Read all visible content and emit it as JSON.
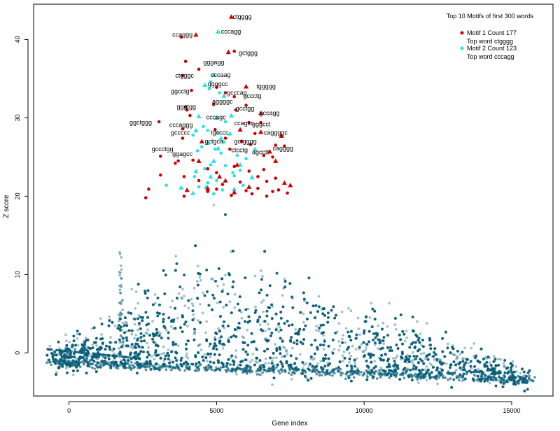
{
  "chart_data": {
    "type": "scatter",
    "xlabel": "Gene index",
    "ylabel": "Z score",
    "xlim": [
      -1200,
      16400
    ],
    "ylim": [
      -5.5,
      44.5
    ],
    "xticks": [
      0,
      5000,
      10000,
      15000
    ],
    "yticks": [
      0,
      10,
      20,
      30,
      40
    ],
    "grid": false,
    "colors": {
      "background_points": "#0a5f7a",
      "motif1": "#d10000",
      "motif2": "#22e6e6",
      "axis": "#000000"
    },
    "legend": {
      "position": "top-right",
      "title": "Top 10 Motifs of first 300 words",
      "entries": [
        {
          "series": "motif1",
          "line1": "Motif  1 Count 177",
          "line2": "Top word  ctgggg"
        },
        {
          "series": "motif2",
          "line1": "Motif  2 Count 123",
          "line2": "Top word  cccagg"
        }
      ]
    },
    "motif1_triangles": [
      [
        5500,
        42.9
      ],
      [
        4300,
        40.6
      ],
      [
        5400,
        38.4
      ],
      [
        6000,
        34.0
      ],
      [
        6500,
        30.6
      ],
      [
        6500,
        28.2
      ],
      [
        5800,
        28.5
      ],
      [
        4500,
        27.0
      ],
      [
        7200,
        27.7
      ],
      [
        7000,
        24.5
      ],
      [
        6800,
        25.7
      ],
      [
        5700,
        24.0
      ],
      [
        5300,
        22.0
      ],
      [
        5100,
        22.5
      ],
      [
        7300,
        21.7
      ],
      [
        7500,
        21.4
      ],
      [
        4000,
        20.8
      ],
      [
        4700,
        21.0
      ],
      [
        5600,
        20.5
      ],
      [
        6100,
        21.2
      ],
      [
        4400,
        24.5
      ]
    ],
    "motif2_triangles": [
      [
        5050,
        41.0
      ],
      [
        4900,
        35.5
      ],
      [
        4600,
        34.2
      ],
      [
        5250,
        32.8
      ],
      [
        5000,
        30.0
      ],
      [
        5500,
        30.3
      ],
      [
        4400,
        30.2
      ],
      [
        4300,
        28.4
      ],
      [
        5450,
        28.0
      ],
      [
        5150,
        27.4
      ],
      [
        4700,
        26.8
      ],
      [
        4900,
        24.5
      ],
      [
        4800,
        22.5
      ],
      [
        4200,
        20.4
      ],
      [
        5600,
        20.9
      ],
      [
        5050,
        26.1
      ],
      [
        4650,
        21.2
      ],
      [
        3800,
        21.1
      ],
      [
        5800,
        24.0
      ],
      [
        6300,
        26.0
      ],
      [
        4300,
        23.2
      ],
      [
        6200,
        22.4
      ]
    ],
    "motif1_dots": [
      [
        5600,
        38.5
      ],
      [
        3800,
        40.3
      ],
      [
        3950,
        37.2
      ],
      [
        3850,
        35.4
      ],
      [
        4150,
        33.5
      ],
      [
        4400,
        36.2
      ],
      [
        5000,
        33.9
      ],
      [
        5600,
        32.7
      ],
      [
        5300,
        33.2
      ],
      [
        3950,
        31.4
      ],
      [
        4000,
        31.0
      ],
      [
        4900,
        31.7
      ],
      [
        5650,
        31.0
      ],
      [
        6000,
        31.6
      ],
      [
        3050,
        29.5
      ],
      [
        4100,
        30.3
      ],
      [
        6100,
        29.4
      ],
      [
        3850,
        28.6
      ],
      [
        6500,
        29.4
      ],
      [
        3850,
        27.4
      ],
      [
        4950,
        28.5
      ],
      [
        6300,
        28.0
      ],
      [
        5300,
        27.4
      ],
      [
        5850,
        27.0
      ],
      [
        6150,
        26.6
      ],
      [
        7000,
        26.5
      ],
      [
        7300,
        26.4
      ],
      [
        5450,
        26.0
      ],
      [
        6600,
        25.2
      ],
      [
        6900,
        25.0
      ],
      [
        3100,
        25.1
      ],
      [
        3600,
        24.2
      ],
      [
        4200,
        24.6
      ],
      [
        4700,
        23.5
      ],
      [
        5000,
        23.0
      ],
      [
        5600,
        23.8
      ],
      [
        6100,
        23.2
      ],
      [
        6400,
        22.5
      ],
      [
        3700,
        24.5
      ],
      [
        3100,
        22.7
      ],
      [
        3900,
        22.5
      ],
      [
        4400,
        22.0
      ],
      [
        5200,
        21.5
      ],
      [
        5800,
        21.8
      ],
      [
        6700,
        21.9
      ],
      [
        2700,
        20.9
      ],
      [
        2600,
        19.8
      ],
      [
        4700,
        20.6
      ],
      [
        5000,
        20.9
      ],
      [
        6200,
        20.3
      ],
      [
        6900,
        20.6
      ],
      [
        7100,
        20.8
      ],
      [
        7400,
        20.4
      ],
      [
        3900,
        20.0
      ],
      [
        5500,
        20.1
      ],
      [
        6700,
        20.0
      ],
      [
        6400,
        21.0
      ],
      [
        6000,
        20.7
      ],
      [
        7000,
        22.3
      ],
      [
        6600,
        23.4
      ]
    ],
    "motif2_dots": [
      [
        4800,
        34.6
      ],
      [
        4750,
        33.7
      ],
      [
        5100,
        33.2
      ],
      [
        4900,
        31.8
      ],
      [
        5300,
        29.5
      ],
      [
        4550,
        28.9
      ],
      [
        4700,
        28.4
      ],
      [
        5050,
        28.1
      ],
      [
        4200,
        27.8
      ],
      [
        5250,
        26.9
      ],
      [
        4500,
        26.3
      ],
      [
        4950,
        26.0
      ],
      [
        5150,
        25.5
      ],
      [
        4350,
        25.8
      ],
      [
        5700,
        25.2
      ],
      [
        6000,
        24.8
      ],
      [
        4800,
        24.0
      ],
      [
        5300,
        23.9
      ],
      [
        4600,
        23.5
      ],
      [
        5550,
        23.0
      ],
      [
        4250,
        22.5
      ],
      [
        5000,
        22.0
      ],
      [
        4700,
        21.7
      ],
      [
        3300,
        21.4
      ],
      [
        4400,
        21.2
      ],
      [
        5200,
        20.8
      ],
      [
        5900,
        21.4
      ],
      [
        4900,
        20.3
      ],
      [
        5600,
        22.6
      ],
      [
        5800,
        23.3
      ]
    ],
    "labels": [
      {
        "text": "ctgggg",
        "x": 5550,
        "y": 42.9
      },
      {
        "text": "ccaggg",
        "x": 3500,
        "y": 40.6
      },
      {
        "text": "cccagg",
        "x": 5150,
        "y": 41.0
      },
      {
        "text": "gctggg",
        "x": 5750,
        "y": 38.3
      },
      {
        "text": "gggagg",
        "x": 4550,
        "y": 37.1
      },
      {
        "text": "cccaag",
        "x": 4800,
        "y": 35.5
      },
      {
        "text": "ctgggc",
        "x": 3600,
        "y": 35.4
      },
      {
        "text": "ggggcc",
        "x": 4700,
        "y": 34.3
      },
      {
        "text": "tggggg",
        "x": 6350,
        "y": 34.0
      },
      {
        "text": "ggcctg",
        "x": 3450,
        "y": 33.4
      },
      {
        "text": "gcccag",
        "x": 5350,
        "y": 33.2
      },
      {
        "text": "gccctg",
        "x": 5900,
        "y": 32.8
      },
      {
        "text": "aggggc",
        "x": 4850,
        "y": 32.1
      },
      {
        "text": "gggtgg",
        "x": 3650,
        "y": 31.4
      },
      {
        "text": "gcctgg",
        "x": 5650,
        "y": 31.2
      },
      {
        "text": "gccagg",
        "x": 6450,
        "y": 30.6
      },
      {
        "text": "cccagc",
        "x": 4650,
        "y": 30.1
      },
      {
        "text": "ggctggg",
        "x": 2050,
        "y": 29.4
      },
      {
        "text": "cccaggg",
        "x": 3400,
        "y": 29.1
      },
      {
        "text": "ccagcc",
        "x": 5600,
        "y": 29.3
      },
      {
        "text": "gggcct",
        "x": 6200,
        "y": 29.2
      },
      {
        "text": "gccccc",
        "x": 3450,
        "y": 28.1
      },
      {
        "text": "tgcccc",
        "x": 4800,
        "y": 28.1
      },
      {
        "text": "caggggc",
        "x": 6600,
        "y": 28.1
      },
      {
        "text": "gctgca",
        "x": 4600,
        "y": 27.0
      },
      {
        "text": "gctgggg",
        "x": 5600,
        "y": 27.0
      },
      {
        "text": "cagggg",
        "x": 6900,
        "y": 26.1
      },
      {
        "text": "gccctgg",
        "x": 2800,
        "y": 26.0
      },
      {
        "text": "ctcctg",
        "x": 5500,
        "y": 25.9
      },
      {
        "text": "ggagcc",
        "x": 3500,
        "y": 25.4
      },
      {
        "text": "agcctt",
        "x": 6200,
        "y": 25.6
      }
    ]
  }
}
